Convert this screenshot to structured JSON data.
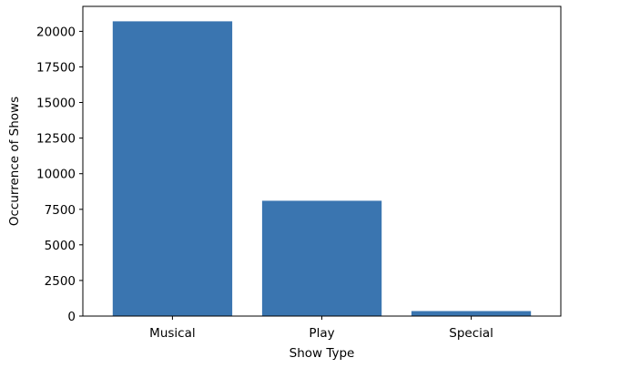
{
  "chart_data": {
    "type": "bar",
    "title": "",
    "xlabel": "Show Type",
    "ylabel": "Occurrence of Shows",
    "categories": [
      "Musical",
      "Play",
      "Special"
    ],
    "values": [
      20700,
      8100,
      350
    ],
    "ylim": [
      0,
      21750
    ],
    "yticks": [
      0,
      2500,
      5000,
      7500,
      10000,
      12500,
      15000,
      17500,
      20000
    ],
    "ytick_labels": [
      "0",
      "2500",
      "5000",
      "7500",
      "10000",
      "12500",
      "15000",
      "17500",
      "20000"
    ],
    "grid": false,
    "bar_color": "#3a75b0"
  }
}
